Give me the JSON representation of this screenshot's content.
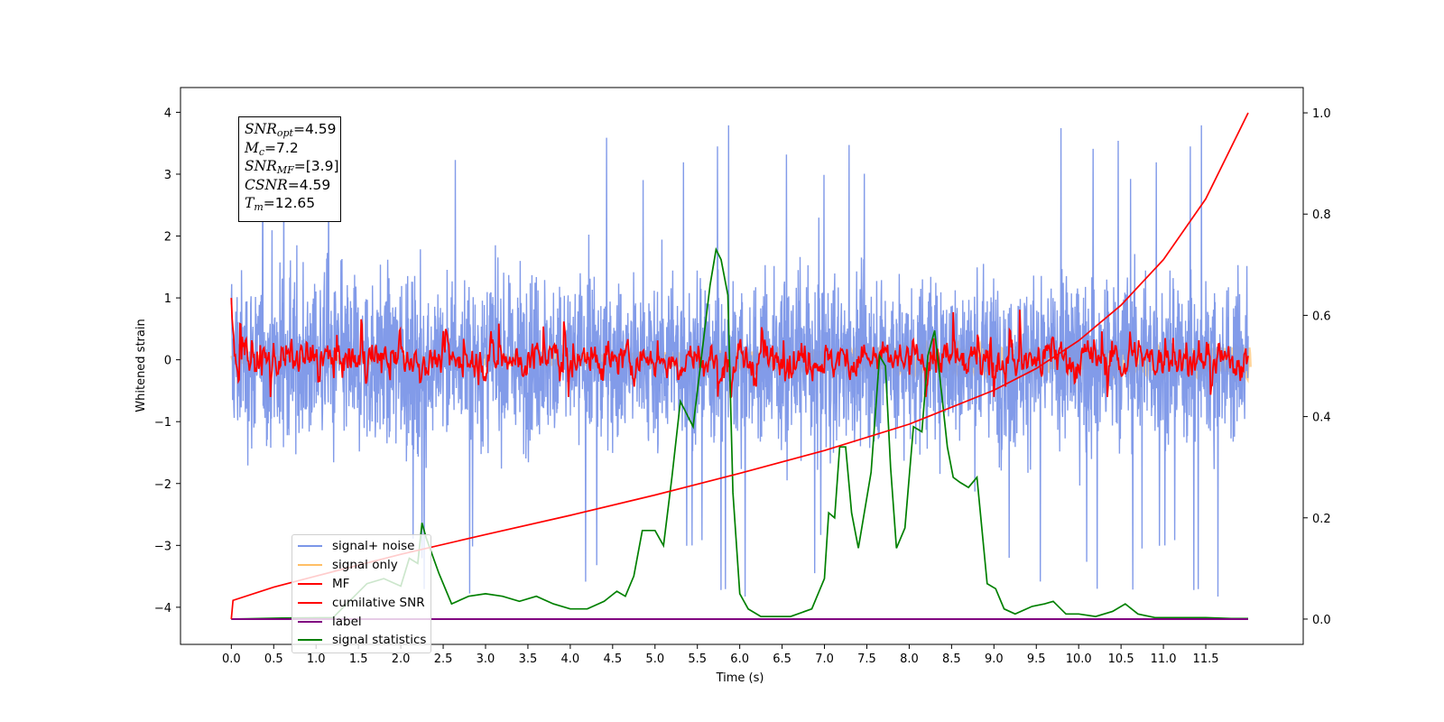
{
  "chart_data": {
    "type": "line",
    "xlabel": "Time (s)",
    "ylabel_left": "Whitened strain",
    "ylabel_right": "",
    "xlim": [
      -0.6,
      12.65
    ],
    "ylim_left": [
      -4.6,
      4.4
    ],
    "ylim_right": [
      -0.05,
      1.05
    ],
    "x_ticks": [
      "0.0",
      "0.5",
      "1.0",
      "1.5",
      "2.0",
      "2.5",
      "3.0",
      "3.5",
      "4.0",
      "4.5",
      "5.0",
      "5.5",
      "6.0",
      "6.5",
      "7.0",
      "7.5",
      "8.0",
      "8.5",
      "9.0",
      "9.5",
      "10.0",
      "10.5",
      "11.0",
      "11.5"
    ],
    "y_ticks_left": [
      "4",
      "3",
      "2",
      "1",
      "0",
      "−1",
      "−2",
      "−3",
      "−4"
    ],
    "y_ticks_right": [
      "1.0",
      "0.8",
      "0.6",
      "0.4",
      "0.2",
      "0.0"
    ],
    "grid": false,
    "legend_position": "lower-left",
    "annotations": {
      "snr_opt": {
        "label": "SNR",
        "sub": "opt",
        "value": "=4.59"
      },
      "mc": {
        "label": "M",
        "sub": "c",
        "value": "=7.2"
      },
      "snr_mf": {
        "label": "SNR",
        "sub": "MF",
        "value": "=[3.9]"
      },
      "csnr": {
        "label": "CSNR",
        "sub": "",
        "value": "=4.59"
      },
      "tm": {
        "label": "T",
        "sub": "m",
        "value": "=12.65"
      }
    },
    "series": [
      {
        "name": "signal+ noise",
        "color": "#7b96e8",
        "axis": "left",
        "description_envelope": {
          "x_range": [
            0,
            12
          ],
          "typical_range": [
            -1.7,
            1.7
          ],
          "max_peaks": 4.0,
          "min_peaks": -4.0
        }
      },
      {
        "name": "signal only",
        "color": "#ffbf66",
        "axis": "left",
        "envelope": {
          "x": [
            0,
            4,
            8,
            12
          ],
          "amplitude": [
            0.02,
            0.05,
            0.1,
            0.2
          ]
        }
      },
      {
        "name": "MF",
        "color": "#ff0000",
        "axis": "left",
        "description_envelope": {
          "x_range": [
            0,
            12
          ],
          "typical_range": [
            -0.4,
            0.4
          ],
          "max_peaks": 1.0,
          "min_peaks": -0.6
        }
      },
      {
        "name": "cumilative SNR",
        "color": "#ff0000",
        "axis": "right",
        "x": [
          0,
          0.02,
          0.5,
          1,
          2,
          3,
          4,
          5,
          6,
          7,
          8,
          9,
          9.5,
          10,
          10.5,
          11,
          11.5,
          12
        ],
        "y": [
          0.0,
          0.037,
          0.063,
          0.085,
          0.128,
          0.167,
          0.205,
          0.245,
          0.288,
          0.333,
          0.385,
          0.452,
          0.495,
          0.55,
          0.62,
          0.71,
          0.83,
          1.0
        ]
      },
      {
        "name": "label",
        "color": "#800080",
        "axis": "right",
        "x": [
          0,
          12
        ],
        "y": [
          0.0,
          0.0
        ]
      },
      {
        "name": "signal statistics",
        "color": "#008000",
        "axis": "right",
        "x": [
          0,
          0.6,
          1.2,
          1.6,
          1.8,
          2.0,
          2.1,
          2.2,
          2.25,
          2.3,
          2.45,
          2.6,
          2.8,
          3.0,
          3.2,
          3.4,
          3.6,
          3.8,
          4.0,
          4.2,
          4.4,
          4.55,
          4.65,
          4.75,
          4.85,
          5.0,
          5.1,
          5.2,
          5.3,
          5.45,
          5.55,
          5.65,
          5.72,
          5.78,
          5.86,
          5.92,
          6.0,
          6.1,
          6.25,
          6.4,
          6.6,
          6.85,
          7.0,
          7.05,
          7.12,
          7.18,
          7.25,
          7.32,
          7.4,
          7.48,
          7.55,
          7.65,
          7.72,
          7.78,
          7.85,
          7.95,
          8.05,
          8.15,
          8.22,
          8.3,
          8.38,
          8.45,
          8.52,
          8.6,
          8.7,
          8.8,
          8.92,
          9.02,
          9.12,
          9.25,
          9.45,
          9.6,
          9.7,
          9.85,
          10.0,
          10.2,
          10.4,
          10.55,
          10.7,
          10.9,
          11.2,
          11.5,
          11.8,
          12.0
        ],
        "y": [
          0.0,
          0.002,
          0.003,
          0.07,
          0.08,
          0.065,
          0.12,
          0.11,
          0.19,
          0.16,
          0.09,
          0.03,
          0.045,
          0.05,
          0.045,
          0.035,
          0.045,
          0.03,
          0.02,
          0.02,
          0.035,
          0.055,
          0.045,
          0.085,
          0.175,
          0.175,
          0.145,
          0.28,
          0.43,
          0.38,
          0.52,
          0.66,
          0.73,
          0.71,
          0.64,
          0.25,
          0.05,
          0.02,
          0.005,
          0.005,
          0.005,
          0.02,
          0.08,
          0.21,
          0.2,
          0.34,
          0.34,
          0.21,
          0.14,
          0.22,
          0.29,
          0.52,
          0.5,
          0.3,
          0.14,
          0.18,
          0.38,
          0.37,
          0.52,
          0.57,
          0.45,
          0.34,
          0.28,
          0.27,
          0.26,
          0.28,
          0.07,
          0.06,
          0.02,
          0.01,
          0.025,
          0.03,
          0.035,
          0.01,
          0.01,
          0.005,
          0.015,
          0.03,
          0.01,
          0.003,
          0.003,
          0.003,
          0.001,
          0.001
        ]
      }
    ]
  }
}
